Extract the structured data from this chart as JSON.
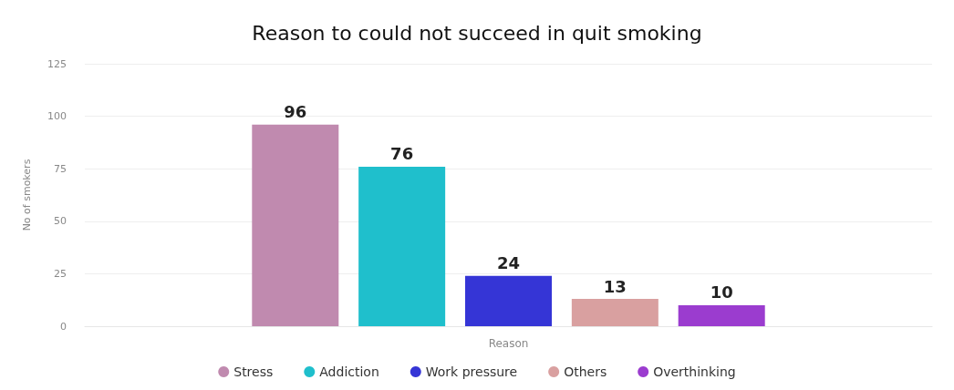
{
  "chart_data": {
    "type": "bar",
    "title": "Reason to could not succeed in quit smoking",
    "xlabel": "Reason",
    "ylabel": "No of smokers",
    "categories": [
      null
    ],
    "series": [
      {
        "name": "Stress",
        "color": "#c08aaf",
        "values": [
          96
        ]
      },
      {
        "name": "Addiction",
        "color": "#1fbfcc",
        "values": [
          76
        ]
      },
      {
        "name": "Work pressure",
        "color": "#3535d6",
        "values": [
          24
        ]
      },
      {
        "name": "Others",
        "color": "#d9a0a0",
        "values": [
          13
        ]
      },
      {
        "name": "Overthinking",
        "color": "#9b3ccf",
        "values": [
          10
        ]
      }
    ],
    "ylim": [
      0,
      125
    ],
    "yticks": [
      0,
      25,
      50,
      75,
      100,
      125
    ],
    "grid": "y",
    "legend": "bottom",
    "data_labels": true
  }
}
